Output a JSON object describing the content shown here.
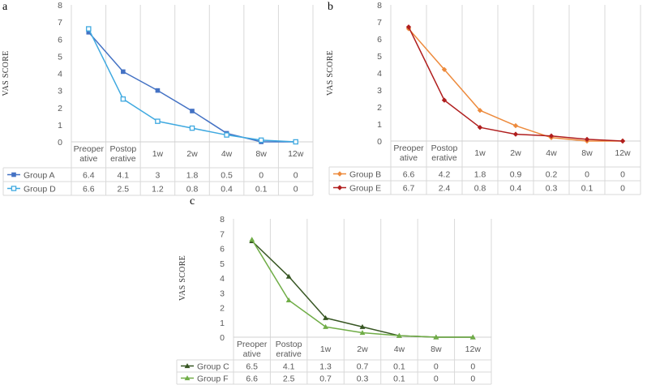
{
  "chart_data": [
    {
      "type": "line",
      "panel_label": "a",
      "ylabel": "VAS SCORE",
      "ylim": [
        0,
        8
      ],
      "yticks": [
        0,
        1,
        2,
        3,
        4,
        5,
        6,
        7,
        8
      ],
      "grid": "vertical category gridlines",
      "legend": "data table below plot",
      "categories": [
        [
          "Preoper",
          "ative"
        ],
        [
          "Postop",
          "erative"
        ],
        [
          "1w"
        ],
        [
          "2w"
        ],
        [
          "4w"
        ],
        [
          "8w"
        ],
        [
          "12w"
        ]
      ],
      "series": [
        {
          "name": "Group A",
          "color": "#4472C4",
          "marker": "square-filled",
          "values": [
            6.4,
            4.1,
            3,
            1.8,
            0.5,
            0,
            0
          ]
        },
        {
          "name": "Group D",
          "color": "#3FA9E0",
          "marker": "square-open",
          "values": [
            6.6,
            2.5,
            1.2,
            0.8,
            0.4,
            0.1,
            0
          ]
        }
      ]
    },
    {
      "type": "line",
      "panel_label": "b",
      "ylabel": "VAS SCORE",
      "ylim": [
        0,
        8
      ],
      "yticks": [
        0,
        1,
        2,
        3,
        4,
        5,
        6,
        7,
        8
      ],
      "grid": "vertical category gridlines",
      "legend": "data table below plot",
      "categories": [
        [
          "Preoper",
          "ative"
        ],
        [
          "Postop",
          "erative"
        ],
        [
          "1w"
        ],
        [
          "2w"
        ],
        [
          "4w"
        ],
        [
          "8w"
        ],
        [
          "12w"
        ]
      ],
      "series": [
        {
          "name": "Group B",
          "color": "#ED8A3C",
          "marker": "diamond",
          "values": [
            6.6,
            4.2,
            1.8,
            0.9,
            0.2,
            0,
            0
          ]
        },
        {
          "name": "Group E",
          "color": "#B01E1E",
          "marker": "diamond",
          "values": [
            6.7,
            2.4,
            0.8,
            0.4,
            0.3,
            0.1,
            0
          ]
        }
      ]
    },
    {
      "type": "line",
      "panel_label": "c",
      "ylabel": "VAS SCORE",
      "ylim": [
        0,
        8
      ],
      "yticks": [
        0,
        1,
        2,
        3,
        4,
        5,
        6,
        7,
        8
      ],
      "grid": "vertical category gridlines",
      "legend": "data table below plot",
      "categories": [
        [
          "Preoper",
          "ative"
        ],
        [
          "Postop",
          "erative"
        ],
        [
          "1w"
        ],
        [
          "2w"
        ],
        [
          "4w"
        ],
        [
          "8w"
        ],
        [
          "12w"
        ]
      ],
      "series": [
        {
          "name": "Group C",
          "color": "#375623",
          "marker": "triangle",
          "values": [
            6.5,
            4.1,
            1.3,
            0.7,
            0.1,
            0,
            0
          ]
        },
        {
          "name": "Group F",
          "color": "#70AD47",
          "marker": "triangle",
          "values": [
            6.6,
            2.5,
            0.7,
            0.3,
            0.1,
            0,
            0
          ]
        }
      ]
    }
  ]
}
